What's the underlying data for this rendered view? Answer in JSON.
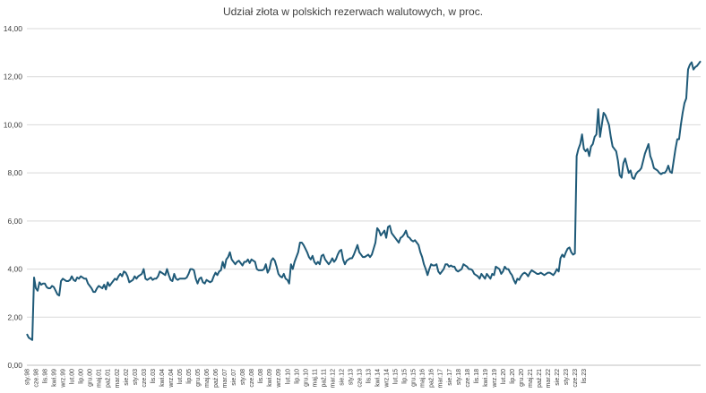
{
  "chart_data": {
    "type": "line",
    "title": "Udział złota w polskich rezerwach walutowych, w proc.",
    "xlabel": "",
    "ylabel": "",
    "ylim": [
      0,
      14
    ],
    "yticks": [
      "0,00",
      "2,00",
      "4,00",
      "6,00",
      "8,00",
      "10,00",
      "12,00",
      "14,00"
    ],
    "grid": "horizontal",
    "legend": "none",
    "line_color": "#1f5a78",
    "x_tick_labels": [
      "sty.98",
      "cze.98",
      "lis.98",
      "kwi.99",
      "wrz.99",
      "lut.00",
      "lip.00",
      "gru.00",
      "maj.01",
      "paź.01",
      "mar.02",
      "sie.02",
      "sty.03",
      "cze.03",
      "lis.03",
      "kwi.04",
      "wrz.04",
      "lut.05",
      "lip.05",
      "gru.05",
      "maj.06",
      "paź.06",
      "mar.07",
      "sie.07",
      "sty.08",
      "cze.08",
      "lis.08",
      "kwi.09",
      "wrz.09",
      "lut.10",
      "lip.10",
      "gru.10",
      "maj.11",
      "paź.11",
      "mar.12",
      "sie.12",
      "sty.13",
      "cze.13",
      "lis.13",
      "kwi.14",
      "wrz.14",
      "lut.15",
      "lip.15",
      "gru.15",
      "maj.16",
      "paź.16",
      "mar.17",
      "sie.17",
      "sty.18",
      "cze.18",
      "lis.18",
      "kwi.19",
      "wrz.19",
      "lut.20",
      "lip.20",
      "gru.20",
      "maj.21",
      "paź.21",
      "mar.22",
      "sie.22",
      "sty.23",
      "cze.23",
      "lis.23"
    ],
    "series": [
      {
        "name": "",
        "x_start": "sty.98",
        "frequency": "monthly",
        "values": [
          1.3,
          1.15,
          1.1,
          1.05,
          3.65,
          3.2,
          3.1,
          3.45,
          3.35,
          3.4,
          3.4,
          3.25,
          3.2,
          3.2,
          3.3,
          3.25,
          3.1,
          2.95,
          2.9,
          3.5,
          3.6,
          3.55,
          3.5,
          3.5,
          3.55,
          3.7,
          3.55,
          3.5,
          3.65,
          3.6,
          3.7,
          3.65,
          3.6,
          3.6,
          3.4,
          3.3,
          3.2,
          3.05,
          3.05,
          3.2,
          3.3,
          3.25,
          3.2,
          3.35,
          3.15,
          3.45,
          3.3,
          3.4,
          3.5,
          3.6,
          3.55,
          3.7,
          3.8,
          3.7,
          3.9,
          3.85,
          3.7,
          3.45,
          3.5,
          3.55,
          3.7,
          3.6,
          3.7,
          3.75,
          3.8,
          4.0,
          3.6,
          3.55,
          3.6,
          3.65,
          3.55,
          3.6,
          3.6,
          3.7,
          3.9,
          3.85,
          3.8,
          3.75,
          4.0,
          3.75,
          3.55,
          3.5,
          3.8,
          3.6,
          3.55,
          3.6,
          3.6,
          3.6,
          3.6,
          3.65,
          3.8,
          4.0,
          4.0,
          3.95,
          3.6,
          3.4,
          3.6,
          3.65,
          3.45,
          3.4,
          3.55,
          3.5,
          3.45,
          3.5,
          3.7,
          3.85,
          3.75,
          3.9,
          3.95,
          4.3,
          4.05,
          4.4,
          4.5,
          4.7,
          4.4,
          4.3,
          4.2,
          4.3,
          4.35,
          4.25,
          4.15,
          4.3,
          4.3,
          4.4,
          4.25,
          4.4,
          4.35,
          4.3,
          4.0,
          3.95,
          3.95,
          3.95,
          4.0,
          4.2,
          3.85,
          4.0,
          4.35,
          4.45,
          4.35,
          4.1,
          3.8,
          3.7,
          3.65,
          3.8,
          3.6,
          3.55,
          3.4,
          4.2,
          4.0,
          4.3,
          4.5,
          4.7,
          5.1,
          5.1,
          5.0,
          4.85,
          4.7,
          4.5,
          4.4,
          4.55,
          4.3,
          4.2,
          4.3,
          4.2,
          4.55,
          4.6,
          4.4,
          4.3,
          4.2,
          4.3,
          4.45,
          4.3,
          4.4,
          4.6,
          4.75,
          4.8,
          4.4,
          4.2,
          4.35,
          4.4,
          4.45,
          4.45,
          4.6,
          4.8,
          5.0,
          4.7,
          4.6,
          4.5,
          4.5,
          4.55,
          4.6,
          4.5,
          4.6,
          4.85,
          5.1,
          5.7,
          5.6,
          5.4,
          5.5,
          5.6,
          5.3,
          5.75,
          5.8,
          5.5,
          5.4,
          5.3,
          5.2,
          5.1,
          5.3,
          5.35,
          5.45,
          5.6,
          5.35,
          5.3,
          5.2,
          5.15,
          5.2,
          5.1,
          5.0,
          4.7,
          4.5,
          4.2,
          4.0,
          3.75,
          4.0,
          4.2,
          4.15,
          4.15,
          4.2,
          3.9,
          3.8,
          3.9,
          4.0,
          4.2,
          4.2,
          4.1,
          4.15,
          4.1,
          4.1,
          3.95,
          3.9,
          3.95,
          4.0,
          4.2,
          4.15,
          4.1,
          4.0,
          4.0,
          3.95,
          3.8,
          3.75,
          3.7,
          3.6,
          3.8,
          3.7,
          3.6,
          3.8,
          3.7,
          3.6,
          3.8,
          3.75,
          4.1,
          4.05,
          4.0,
          3.8,
          3.9,
          4.1,
          4.0,
          4.0,
          3.85,
          3.75,
          3.55,
          3.4,
          3.6,
          3.55,
          3.7,
          3.8,
          3.85,
          3.8,
          3.7,
          3.85,
          3.95,
          3.9,
          3.85,
          3.8,
          3.8,
          3.85,
          3.8,
          3.75,
          3.8,
          3.85,
          3.85,
          3.8,
          3.75,
          3.85,
          4.0,
          3.9,
          4.45,
          4.6,
          4.5,
          4.7,
          4.85,
          4.9,
          4.7,
          4.6,
          4.65,
          8.7,
          9.0,
          9.2,
          9.6,
          9.0,
          8.9,
          9.0,
          8.7,
          9.1,
          9.2,
          9.5,
          9.6,
          10.65,
          9.5,
          10.0,
          10.5,
          10.4,
          10.2,
          10.0,
          9.5,
          9.1,
          9.0,
          8.9,
          8.5,
          7.9,
          7.8,
          8.4,
          8.6,
          8.3,
          8.0,
          8.1,
          7.8,
          7.75,
          7.95,
          8.05,
          8.1,
          8.2,
          8.5,
          8.8,
          9.0,
          9.2,
          8.7,
          8.5,
          8.2,
          8.15,
          8.1,
          8.0,
          7.95,
          8.0,
          8.0,
          8.1,
          8.3,
          8.05,
          8.0,
          8.5,
          9.0,
          9.4,
          9.4,
          10.0,
          10.5,
          10.9,
          11.1,
          12.3,
          12.5,
          12.6,
          12.3,
          12.4,
          12.45,
          12.55,
          12.65
        ]
      }
    ]
  }
}
